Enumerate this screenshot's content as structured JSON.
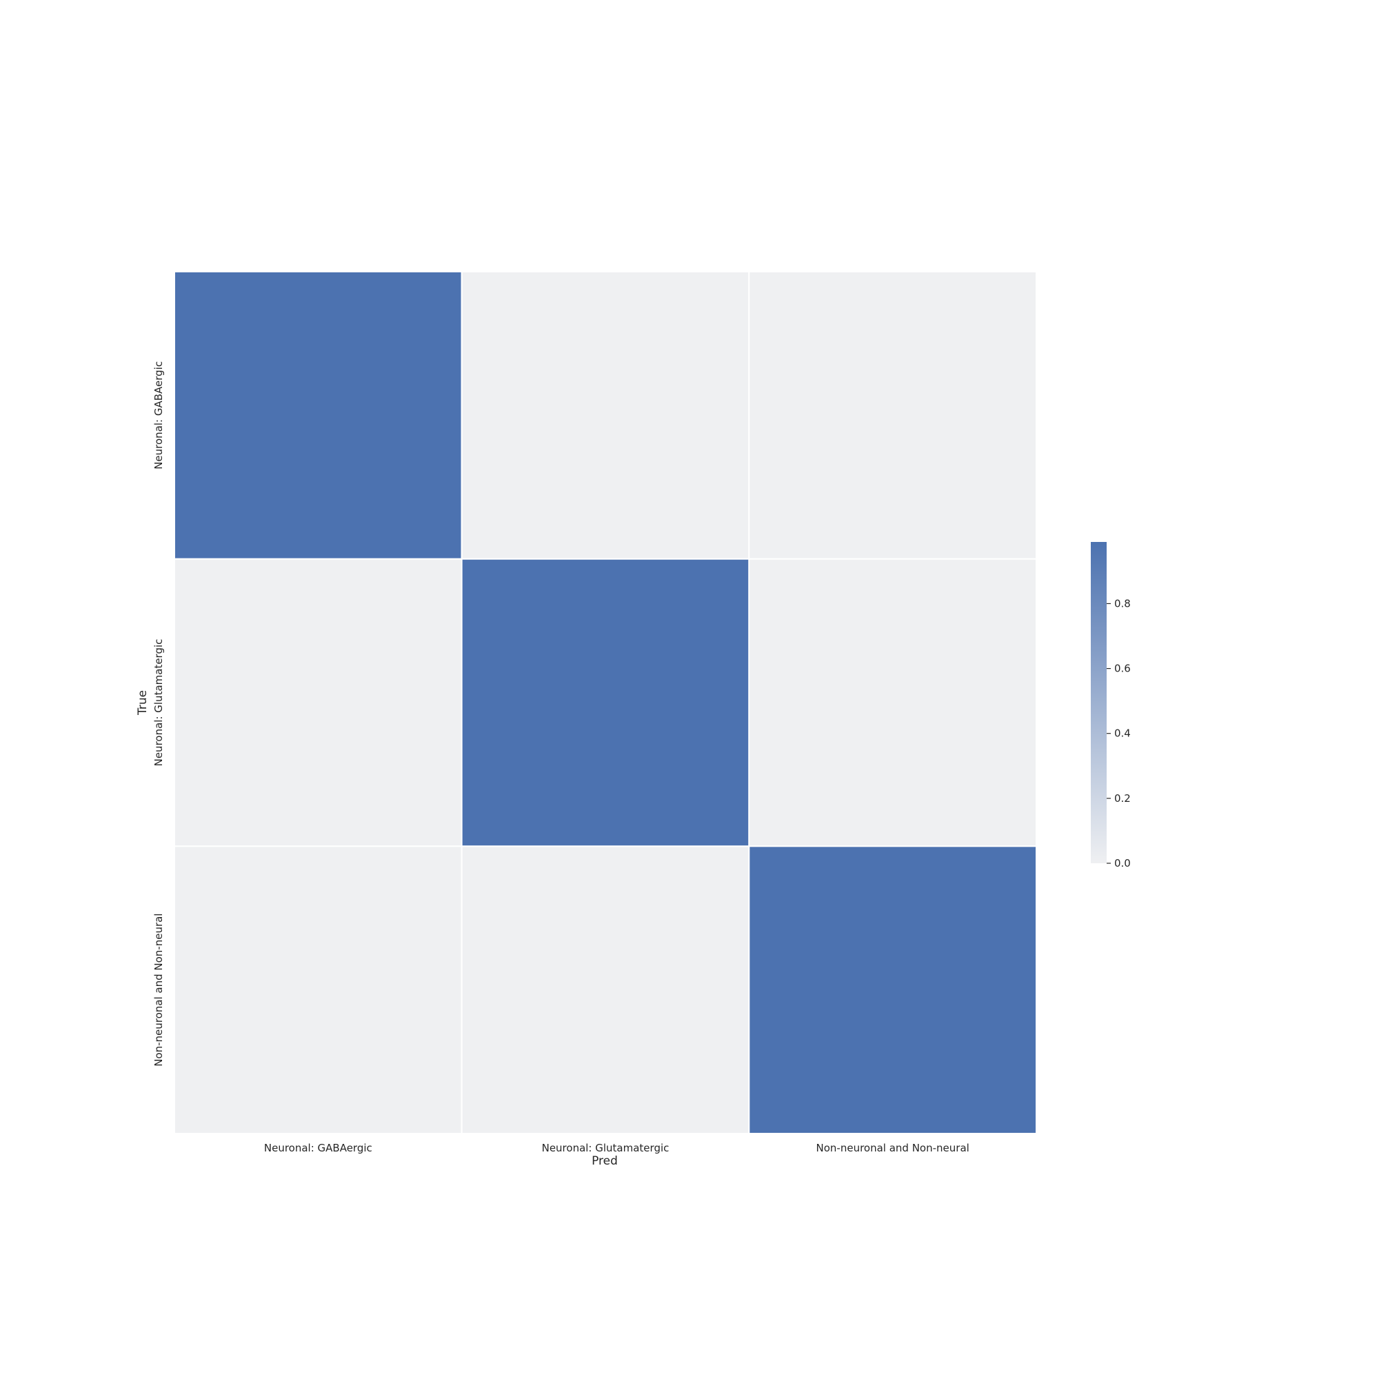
{
  "chart_data": {
    "type": "heatmap",
    "title": "",
    "xlabel": "Pred",
    "ylabel": "True",
    "x_categories": [
      "Neuronal: GABAergic",
      "Neuronal: Glutamatergic",
      "Non-neuronal and Non-neural"
    ],
    "y_categories": [
      "Neuronal: GABAergic",
      "Neuronal: Glutamatergic",
      "Non-neuronal and Non-neural"
    ],
    "values": [
      [
        0.99,
        0.0,
        0.0
      ],
      [
        0.0,
        0.99,
        0.0
      ],
      [
        0.0,
        0.0,
        0.99
      ]
    ],
    "colorbar": {
      "min": 0.0,
      "max": 0.99,
      "ticks": [
        0.0,
        0.2,
        0.4,
        0.6,
        0.8
      ],
      "tick_labels": [
        "0.0",
        "0.2",
        "0.4",
        "0.6",
        "0.8"
      ],
      "color_low": "#eff0f2",
      "color_high": "#4c72b0"
    },
    "grid": false,
    "cell_separator_color": "#ffffff"
  }
}
